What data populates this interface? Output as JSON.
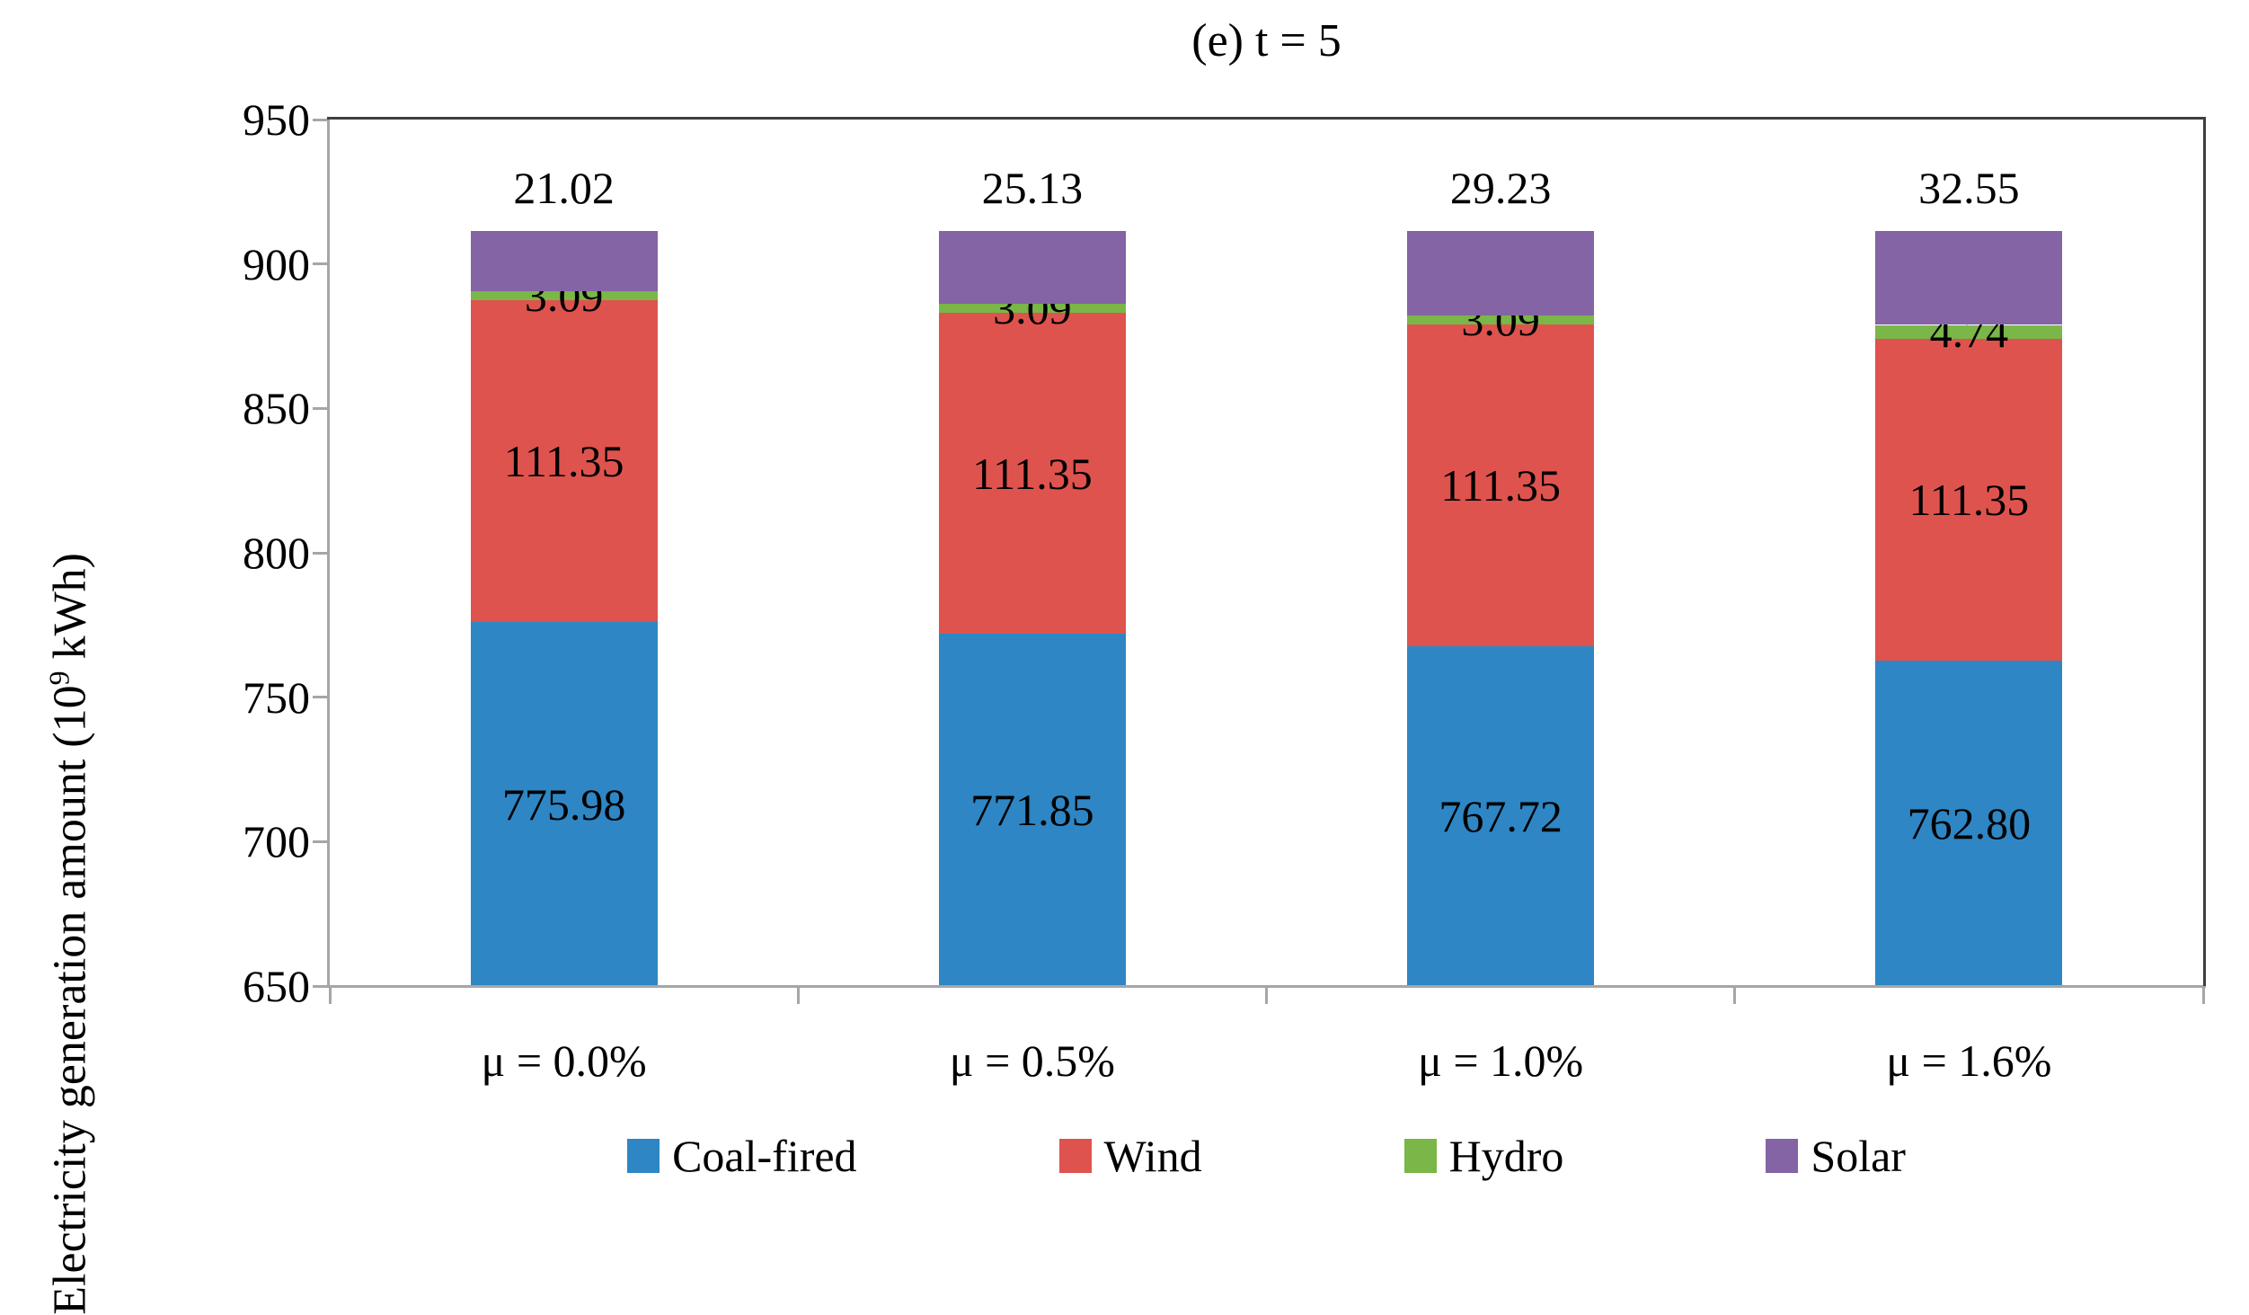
{
  "title": "(e) t = 5",
  "y_axis_label": {
    "prefix": "Electricity generation amount (10",
    "sup": "9",
    "suffix": " kWh)"
  },
  "chart_data": {
    "type": "bar",
    "stacked": true,
    "title": "(e) t = 5",
    "ylabel": "Electricity generation amount (10^9 kWh)",
    "xlabel": "",
    "ylim": [
      650,
      950
    ],
    "yticks": [
      950,
      900,
      850,
      800,
      750,
      700,
      650
    ],
    "grid": false,
    "legend_position": "bottom",
    "categories": [
      "μ = 0.0%",
      "μ = 0.5%",
      "μ = 1.0%",
      "μ = 1.6%"
    ],
    "series": [
      {
        "name": "Coal-fired",
        "color": "#2e86c4",
        "label_position": "inside",
        "values": [
          775.98,
          771.85,
          767.72,
          762.8
        ]
      },
      {
        "name": "Wind",
        "color": "#df534e",
        "label_position": "inside",
        "values": [
          111.35,
          111.35,
          111.35,
          111.35
        ]
      },
      {
        "name": "Hydro",
        "color": "#7ab648",
        "label_position": "inside",
        "values": [
          3.09,
          3.09,
          3.09,
          4.74
        ]
      },
      {
        "name": "Solar",
        "color": "#8464a4",
        "label_position": "above",
        "values": [
          21.02,
          25.13,
          29.23,
          32.55
        ]
      }
    ],
    "axis_colors": {
      "left_bottom": "#a6a6a6",
      "top_right": "#3f3f3f"
    }
  }
}
